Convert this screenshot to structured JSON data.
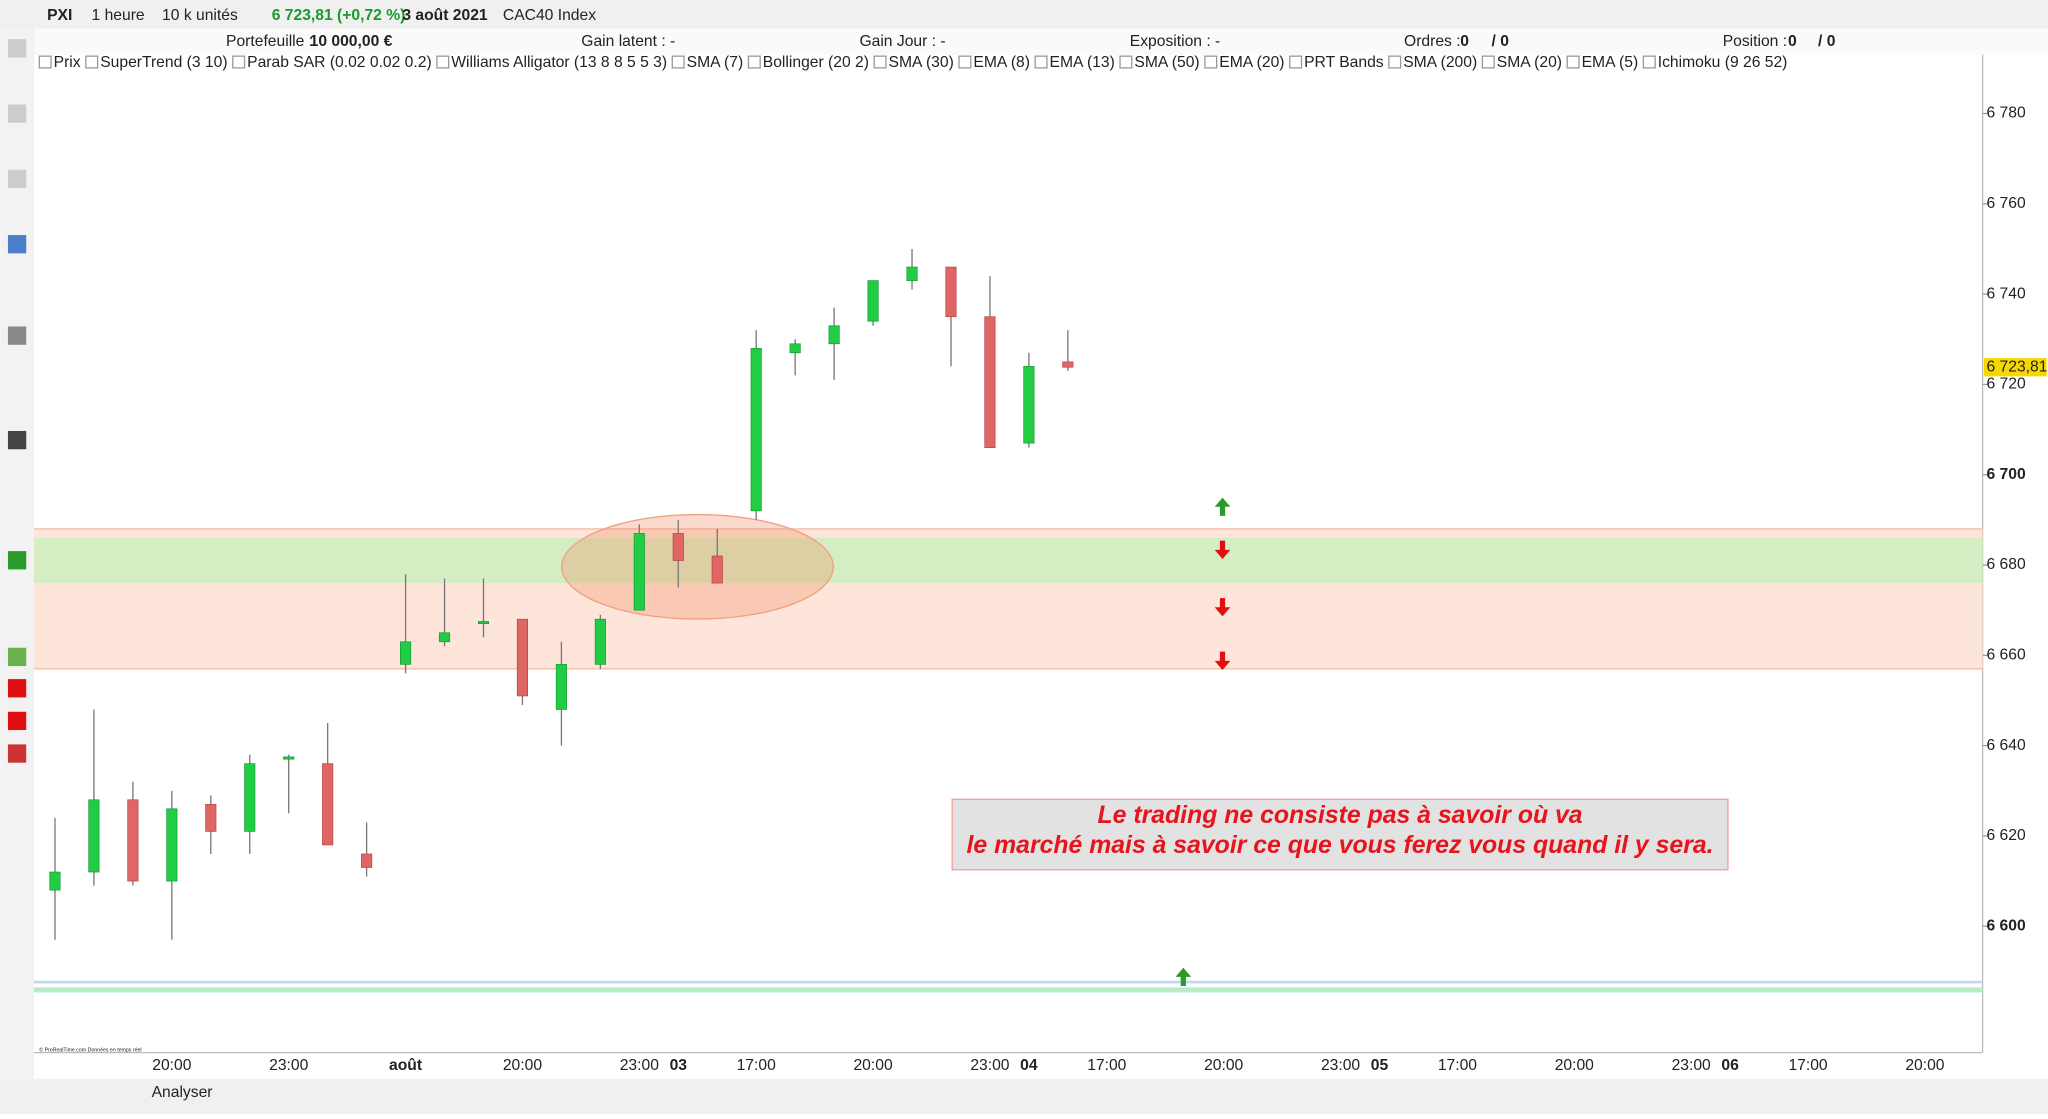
{
  "header": {
    "symbol": "PXI",
    "period": "1 heure",
    "units": "10 k unités",
    "quote": "6 723,81 (+0,72 %)",
    "date": "3 août 2021",
    "instrument": "CAC40 Index"
  },
  "account": {
    "portfolio_label": "Portefeuille :",
    "portfolio": "10 000,00 €",
    "gain_latent": "Gain latent : -",
    "gain_jour": "Gain Jour : -",
    "exposition": "Exposition : -",
    "ordres_label": "Ordres :",
    "ordres": "0",
    "ordres_2": "/ 0",
    "position_label": "Position :",
    "position": "0",
    "position_2": "/ 0"
  },
  "indicators": [
    "Prix",
    "SuperTrend (3 10)",
    "Parab SAR (0.02 0.02 0.2)",
    "Williams Alligator (13 8 8 5 5 3)",
    "SMA (7)",
    "Bollinger (20 2)",
    "SMA (30)",
    "EMA (8)",
    "EMA (13)",
    "SMA (50)",
    "EMA (20)",
    "PRT Bands",
    "SMA (200)",
    "SMA (20)",
    "EMA (5)",
    "Ichimoku (9 26 52)"
  ],
  "footer": {
    "analyser": "Analyser",
    "copyright": "© ProRealTime.com Données en temps réel"
  },
  "chart_data": {
    "type": "candlestick",
    "categories": [
      null,
      null,
      null,
      "20:00",
      null,
      null,
      "23:00",
      null,
      null,
      "août",
      null,
      null,
      "20:00",
      null,
      null,
      "23:00",
      "03",
      null,
      "17:00",
      null,
      null,
      "20:00",
      null,
      null,
      "23:00",
      "04",
      null,
      "17:00",
      null,
      null,
      "20:00",
      null,
      null,
      "23:00",
      "05",
      null,
      "17:00",
      null,
      null,
      "20:00",
      null,
      null,
      "23:00",
      "06",
      null,
      "17:00",
      null,
      null,
      "20:00"
    ],
    "bold_categories": [
      "août",
      "03",
      "04",
      "05",
      "06"
    ],
    "open": [
      6608,
      6612,
      6628,
      6610,
      6627,
      6621,
      6637,
      6636,
      6616,
      6658,
      6663,
      6667,
      6668,
      6648,
      6658,
      6670,
      6687,
      6682,
      6692,
      6727,
      6729,
      6734,
      6743,
      6746,
      6735,
      6707,
      6725,
      null,
      null,
      null,
      null,
      null,
      null,
      null,
      null,
      null,
      null,
      null,
      null,
      null,
      null,
      null,
      null,
      null,
      null,
      null,
      null,
      null,
      null
    ],
    "high": [
      6624,
      6648,
      6632,
      6630,
      6629,
      6638,
      6638,
      6645,
      6623,
      6678,
      6677,
      6677,
      6668,
      6663,
      6669,
      6689,
      6690,
      6688,
      6732,
      6730,
      6737,
      6743,
      6750,
      6746,
      6744,
      6727,
      6732,
      null,
      null,
      null,
      null,
      null,
      null,
      null,
      null,
      null,
      null,
      null,
      null,
      null,
      null,
      null,
      null,
      null,
      null,
      null,
      null,
      null,
      null
    ],
    "low": [
      6597,
      6609,
      6609,
      6597,
      6616,
      6616,
      6625,
      6618,
      6611,
      6656,
      6662,
      6664,
      6649,
      6640,
      6657,
      6670,
      6675,
      6676,
      6690,
      6722,
      6721,
      6733,
      6741,
      6724,
      6706,
      6706,
      6723,
      null,
      null,
      null,
      null,
      null,
      null,
      null,
      null,
      null,
      null,
      null,
      null,
      null,
      null,
      null,
      null,
      null,
      null,
      null,
      null,
      null,
      null
    ],
    "close": [
      6612,
      6628,
      6610,
      6626,
      6621,
      6636,
      6637.5,
      6618,
      6613,
      6663,
      6665,
      6667.5,
      6651,
      6658,
      6668,
      6687,
      6681,
      6676,
      6728,
      6729,
      6733,
      6743,
      6746,
      6735,
      6706,
      6724,
      6723.81,
      null,
      null,
      null,
      null,
      null,
      null,
      null,
      null,
      null,
      null,
      null,
      null,
      null,
      null,
      null,
      null,
      null,
      null,
      null,
      null,
      null,
      null
    ],
    "up_color": "#22cc44",
    "down_color": "#e06666",
    "ylim": [
      6572,
      6793
    ],
    "yticks": [
      {
        "value": 6600,
        "label": "6 600"
      },
      {
        "value": 6620,
        "label": "6 620"
      },
      {
        "value": 6640,
        "label": "6 640"
      },
      {
        "value": 6660,
        "label": "6 660"
      },
      {
        "value": 6680,
        "label": "6 680"
      },
      {
        "value": 6700,
        "label": "6 700"
      },
      {
        "value": 6720,
        "label": "6 720"
      },
      {
        "value": 6740,
        "label": "6 740"
      },
      {
        "value": 6760,
        "label": "6 760"
      },
      {
        "value": 6780,
        "label": "6 780"
      }
    ],
    "bold_yticks": [
      6600,
      6700
    ],
    "last_price": {
      "value": 6723.81,
      "label": "6 723,81"
    },
    "zones": [
      {
        "from": 6657,
        "to": 6688,
        "color": "#fde5da"
      },
      {
        "from": 6676,
        "to": 6686,
        "color": "#d5edc2"
      }
    ],
    "annotation": [
      "Le trading ne consiste pas à savoir où va",
      "le marché mais à savoir ce que vous ferez vous quand il y sera."
    ]
  }
}
